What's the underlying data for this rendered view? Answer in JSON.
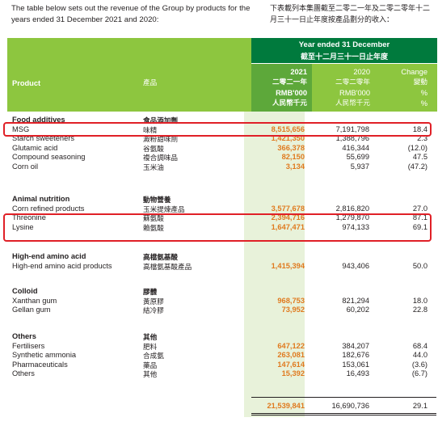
{
  "intro": {
    "en": "The table below sets out the revenue of the Group by products for the years ended 31 December 2021 and 2020:",
    "zh": "下表載列本集團截至二零二一年及二零二零年十二月三十一日止年度按產品劃分的收入："
  },
  "header": {
    "product_en": "Product",
    "product_zh": "產品",
    "year_ended_en": "Year ended 31 December",
    "year_ended_zh": "截至十二月三十一日止年度",
    "y2021": "2021",
    "y2021_zh": "二零二一年",
    "y2020": "2020",
    "y2020_zh": "二零二零年",
    "unit": "RMB'000",
    "unit_zh": "人民幣千元",
    "change_en": "Change",
    "change_zh": "變動",
    "pct": "%"
  },
  "sections": [
    {
      "en": "Food additives",
      "zh": "食品添加劑",
      "rows": [
        {
          "en": "MSG",
          "zh": "味精",
          "v2021": "8,515,656",
          "v2020": "7,191,798",
          "change": "18.4"
        },
        {
          "en": "Starch sweeteners",
          "zh": "澱粉甜味劑",
          "v2021": "1,421,350",
          "v2020": "1,388,796",
          "change": "2.3"
        },
        {
          "en": "Glutamic acid",
          "zh": "谷氨酸",
          "v2021": "366,378",
          "v2020": "416,344",
          "change": "(12.0)"
        },
        {
          "en": "Compound seasoning",
          "zh": "複合調味品",
          "v2021": "82,150",
          "v2020": "55,699",
          "change": "47.5"
        },
        {
          "en": "Corn oil",
          "zh": "玉米油",
          "v2021": "3,134",
          "v2020": "5,937",
          "change": "(47.2)"
        }
      ]
    },
    {
      "en": "Animal nutrition",
      "zh": "動物營養",
      "rows": [
        {
          "en": "Corn refined products",
          "zh": "玉米提煉產品",
          "v2021": "3,577,678",
          "v2020": "2,816,820",
          "change": "27.0"
        },
        {
          "en": "Threonine",
          "zh": "蘇氨酸",
          "v2021": "2,394,716",
          "v2020": "1,279,870",
          "change": "87.1"
        },
        {
          "en": "Lysine",
          "zh": "賴氨酸",
          "v2021": "1,647,471",
          "v2020": "974,133",
          "change": "69.1"
        }
      ]
    },
    {
      "en": "High-end amino acid",
      "zh": "高檔氨基酸",
      "rows": [
        {
          "en": "High-end amino acid products",
          "zh": "高檔氨基酸產品",
          "v2021": "1,415,394",
          "v2020": "943,406",
          "change": "50.0"
        }
      ]
    },
    {
      "en": "Colloid",
      "zh": "膠體",
      "rows": [
        {
          "en": "Xanthan gum",
          "zh": "黃原膠",
          "v2021": "968,753",
          "v2020": "821,294",
          "change": "18.0"
        },
        {
          "en": "Gellan gum",
          "zh": "結冷膠",
          "v2021": "73,952",
          "v2020": "60,202",
          "change": "22.8"
        }
      ]
    },
    {
      "en": "Others",
      "zh": "其他",
      "rows": [
        {
          "en": "Fertilisers",
          "zh": "肥料",
          "v2021": "647,122",
          "v2020": "384,207",
          "change": "68.4"
        },
        {
          "en": "Synthetic ammonia",
          "zh": "合成氨",
          "v2021": "263,081",
          "v2020": "182,676",
          "change": "44.0"
        },
        {
          "en": "Pharmaceuticals",
          "zh": "藥品",
          "v2021": "147,614",
          "v2020": "153,061",
          "change": "(3.6)"
        },
        {
          "en": "Others",
          "zh": "其他",
          "v2021": "15,392",
          "v2020": "16,493",
          "change": "(6.7)"
        }
      ]
    }
  ],
  "total": {
    "v2021": "21,539,841",
    "v2020": "16,690,736",
    "change": "29.1"
  },
  "colors": {
    "header_green": "#8dc63f",
    "year_band": "#007a3d",
    "col2021": "#5da83a",
    "value_orange": "#e07a1f",
    "highlight_red": "#e02027"
  }
}
